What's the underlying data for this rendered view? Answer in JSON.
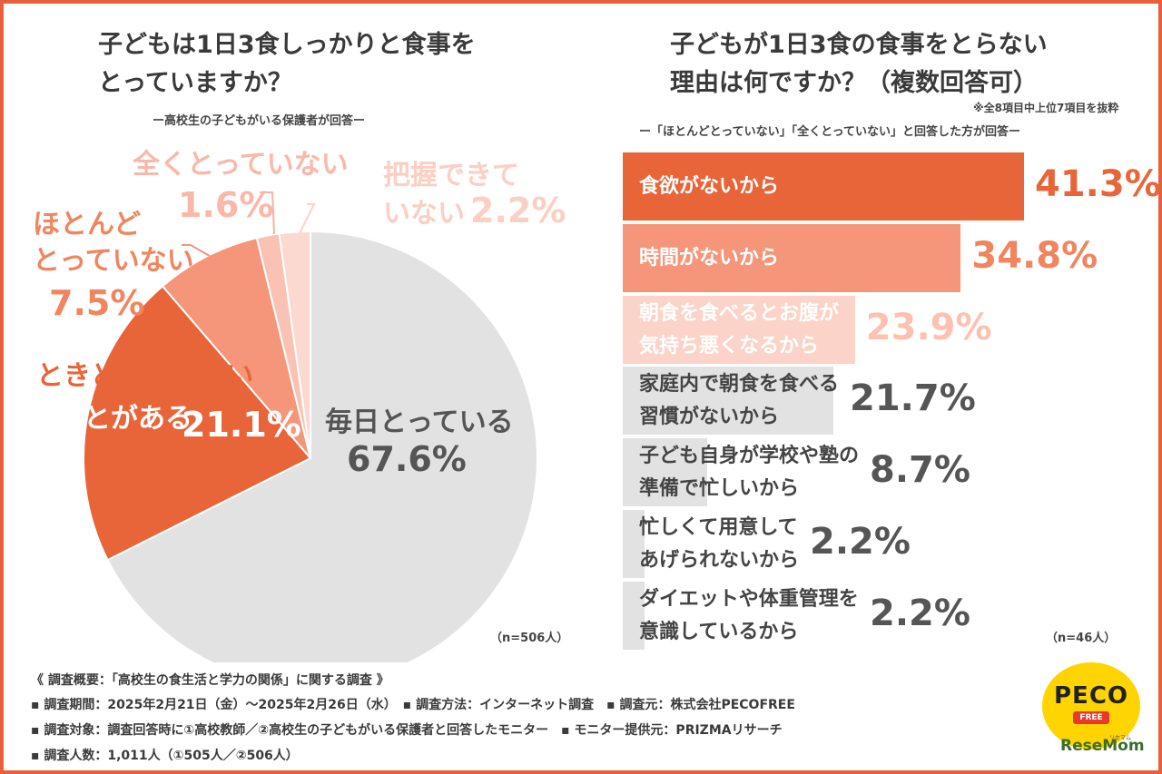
{
  "left": {
    "title_line1": "子どもは1日3食しっかりと食事を",
    "title_line2": "とっていますか？",
    "subtitle": "ー高校生の子どもがいる保護者が回答ー",
    "n_note": "（n=506人）"
  },
  "right": {
    "title_line1": "子どもが1日3食の食事をとらない",
    "title_line2": "理由は何ですか？（複数回答可）",
    "note": "※全8項目中上位7項目を抜粋",
    "subtitle": "ー「ほとんどとっていない」「全くとっていない」と回答した方が回答ー",
    "n_note": "（n=46人）"
  },
  "chart_data": [
    {
      "type": "pie",
      "slices": [
        {
          "label": "毎日とっている",
          "value": 67.6,
          "pct_text": "67.6%",
          "color": "#e2e2e2"
        },
        {
          "label": "ときどきとらないことがある",
          "label_line1": "ときどきとらない",
          "label_line2": "ことがある",
          "value": 21.1,
          "pct_text": "21.1%",
          "color": "#e8653a"
        },
        {
          "label": "ほとんどとっていない",
          "label_line1": "ほとんど",
          "label_line2": "とっていない",
          "value": 7.5,
          "pct_text": "7.5%",
          "color": "#f5967a"
        },
        {
          "label": "全くとっていない",
          "value": 1.6,
          "pct_text": "1.6%",
          "color": "#f9c2b4"
        },
        {
          "label": "把握できていない",
          "label_line1": "把握できて",
          "label_line2": "いない",
          "value": 2.2,
          "pct_text": "2.2%",
          "color": "#fbd9d0"
        }
      ]
    },
    {
      "type": "bar",
      "orientation": "horizontal",
      "xlim": [
        0,
        41.3
      ],
      "bars": [
        {
          "label": "食欲がないから",
          "lines": [
            "食欲がないから"
          ],
          "value": 41.3,
          "pct_text": "41.3%",
          "color": "#e8653a",
          "text_color": "#ffffff",
          "pct_color": "#e8653a"
        },
        {
          "label": "時間がないから",
          "lines": [
            "時間がないから"
          ],
          "value": 34.8,
          "pct_text": "34.8%",
          "color": "#f5967a",
          "text_color": "#ffffff",
          "pct_color": "#f0855f"
        },
        {
          "label": "朝食を食べるとお腹が気持ち悪くなるから",
          "lines": [
            "朝食を食べるとお腹が",
            "気持ち悪くなるから"
          ],
          "value": 23.9,
          "pct_text": "23.9%",
          "color": "#fbd3c8",
          "text_color": "#ffffff",
          "pct_color": "#fbc2b2"
        },
        {
          "label": "家庭内で朝食を食べる習慣がないから",
          "lines": [
            "家庭内で朝食を食べる",
            "習慣がないから"
          ],
          "value": 21.7,
          "pct_text": "21.7%",
          "color": "#e2e2e2",
          "text_color": "#444444",
          "pct_color": "#555555"
        },
        {
          "label": "子ども自身が学校や塾の準備で忙しいから",
          "lines": [
            "子ども自身が学校や塾の",
            "準備で忙しいから"
          ],
          "value": 8.7,
          "pct_text": "8.7%",
          "color": "#e2e2e2",
          "text_color": "#444444",
          "pct_color": "#555555"
        },
        {
          "label": "忙しくて用意してあげられないから",
          "lines": [
            "忙しくて用意して",
            "あげられないから"
          ],
          "value": 2.2,
          "pct_text": "2.2%",
          "color": "#e2e2e2",
          "text_color": "#444444",
          "pct_color": "#555555"
        },
        {
          "label": "ダイエットや体重管理を意識しているから",
          "lines": [
            "ダイエットや体重管理を",
            "意識しているから"
          ],
          "value": 2.2,
          "pct_text": "2.2%",
          "color": "#e2e2e2",
          "text_color": "#444444",
          "pct_color": "#555555"
        }
      ]
    }
  ],
  "footer": {
    "overview": "《 調査概要：「高校生の食生活と学力の関係」に関する調査 》",
    "line1": "▪ 調査期間：2025年2月21日（金）～2025年2月26日（水）　▪ 調査方法：インターネット調査　▪ 調査元：株式会社PECOFREE",
    "line2": "▪ 調査対象：調査回答時に①高校教師／②高校生の子どもがいる保護者と回答したモニター　▪ モニター提供元：PRIZMAリサーチ",
    "line3": "▪ 調査人数：1,011人（①505人／②506人）"
  },
  "logos": {
    "peco_top": "PECO",
    "peco_bottom": "FREE",
    "resemom": "ReseMom",
    "resemom_small": "リセマム"
  }
}
